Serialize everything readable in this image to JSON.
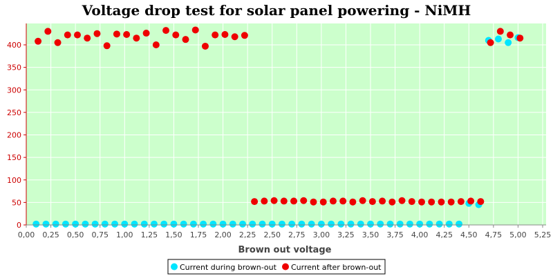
{
  "chart_data": {
    "type": "scatter",
    "title": "Voltage drop test for solar panel powering -  NiMH",
    "xlabel": "Brown out voltage",
    "ylabel": "",
    "xlim": [
      0,
      5.25
    ],
    "ylim": [
      0,
      440
    ],
    "x_ticks": [
      0,
      0.25,
      0.5,
      0.75,
      1.0,
      1.25,
      1.5,
      1.75,
      2.0,
      2.25,
      2.5,
      2.75,
      3.0,
      3.25,
      3.5,
      3.75,
      4.0,
      4.25,
      4.5,
      4.75,
      5.0,
      5.25
    ],
    "x_tick_labels": [
      "0,00",
      "0,25",
      "0,50",
      "0,75",
      "1,00",
      "1,25",
      "1,50",
      "1,75",
      "2,00",
      "2,25",
      "2,50",
      "2,75",
      "3,00",
      "3,25",
      "3,50",
      "3,75",
      "4,00",
      "4,25",
      "4,50",
      "4,75",
      "5,00",
      "5,25"
    ],
    "y_ticks": [
      0,
      50,
      100,
      150,
      200,
      250,
      300,
      350,
      400
    ],
    "y_tick_labels": [
      "0",
      "50",
      "100",
      "150",
      "200",
      "250",
      "300",
      "350",
      "400"
    ],
    "grid": true,
    "legend_position": "bottom",
    "background_color": "#ccffcc",
    "series": [
      {
        "name": "Current during brown-out",
        "color": "#00e5ff",
        "x": [
          0.1,
          0.2,
          0.3,
          0.4,
          0.5,
          0.6,
          0.7,
          0.8,
          0.9,
          1.0,
          1.1,
          1.2,
          1.3,
          1.4,
          1.5,
          1.6,
          1.7,
          1.8,
          1.9,
          2.0,
          2.1,
          2.2,
          2.3,
          2.4,
          2.5,
          2.6,
          2.7,
          2.8,
          2.9,
          3.0,
          3.1,
          3.2,
          3.3,
          3.4,
          3.5,
          3.6,
          3.7,
          3.8,
          3.9,
          4.0,
          4.1,
          4.2,
          4.3,
          4.4,
          4.5,
          4.6,
          4.7,
          4.8,
          4.9,
          5.0
        ],
        "y": [
          2,
          2,
          2,
          2,
          2,
          2,
          2,
          2,
          2,
          2,
          2,
          2,
          2,
          2,
          2,
          2,
          2,
          2,
          2,
          2,
          2,
          2,
          2,
          2,
          2,
          2,
          2,
          2,
          2,
          2,
          2,
          2,
          2,
          2,
          2,
          2,
          2,
          2,
          2,
          2,
          2,
          2,
          2,
          2,
          48,
          45,
          410,
          413,
          405,
          416
        ]
      },
      {
        "name": "Current after brown-out",
        "color": "#ee0000",
        "x": [
          0.12,
          0.22,
          0.32,
          0.42,
          0.52,
          0.62,
          0.72,
          0.82,
          0.92,
          1.02,
          1.12,
          1.22,
          1.32,
          1.42,
          1.52,
          1.62,
          1.72,
          1.82,
          1.92,
          2.02,
          2.12,
          2.22,
          2.32,
          2.42,
          2.52,
          2.62,
          2.72,
          2.82,
          2.92,
          3.02,
          3.12,
          3.22,
          3.32,
          3.42,
          3.52,
          3.62,
          3.72,
          3.82,
          3.92,
          4.02,
          4.12,
          4.22,
          4.32,
          4.42,
          4.52,
          4.62,
          4.72,
          4.82,
          4.92,
          5.02
        ],
        "y": [
          408,
          430,
          405,
          422,
          422,
          415,
          425,
          398,
          424,
          423,
          415,
          426,
          400,
          432,
          422,
          412,
          433,
          397,
          422,
          423,
          418,
          421,
          52,
          53,
          54,
          53,
          53,
          54,
          51,
          51,
          53,
          53,
          51,
          54,
          52,
          53,
          51,
          54,
          52,
          51,
          51,
          51,
          51,
          52,
          53,
          52,
          405,
          430,
          422,
          415
        ]
      }
    ]
  }
}
